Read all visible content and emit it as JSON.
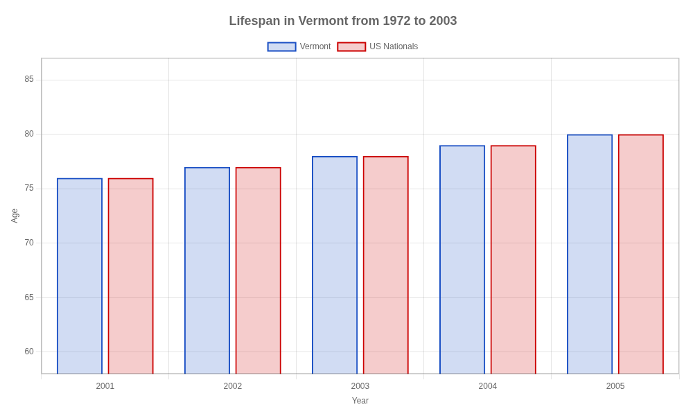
{
  "chart_data": {
    "type": "bar",
    "title": "Lifespan in Vermont from 1972 to 2003",
    "xlabel": "Year",
    "ylabel": "Age",
    "categories": [
      "2001",
      "2002",
      "2003",
      "2004",
      "2005"
    ],
    "series": [
      {
        "name": "Vermont",
        "color": "#1a4fc4",
        "values": [
          76,
          77,
          78,
          79,
          80
        ]
      },
      {
        "name": "US Nationals",
        "color": "#cc0000",
        "values": [
          76,
          77,
          78,
          79,
          80
        ]
      }
    ],
    "ylim": [
      58,
      87
    ],
    "yticks": [
      60,
      65,
      70,
      75,
      80,
      85
    ],
    "grid": true,
    "legend": "top"
  }
}
